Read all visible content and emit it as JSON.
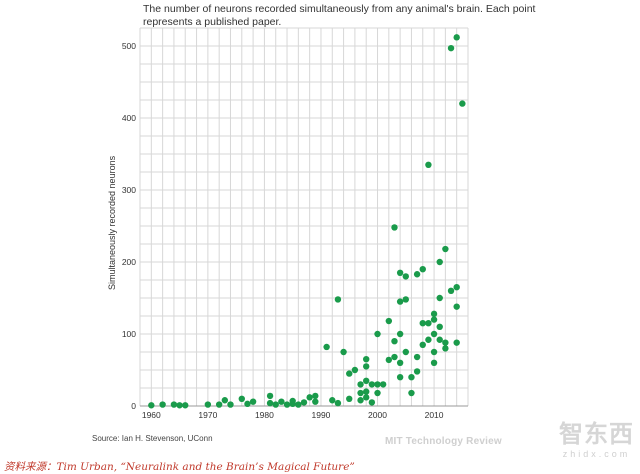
{
  "description": {
    "line1": "The number of neurons recorded simultaneously from any animal's brain. Each point",
    "line2": "represents a published paper."
  },
  "source": "Source: Ian H. Stevenson, UConn",
  "brand": "MIT Technology Review",
  "caption": "资料来源：Tim Urban, “Neuralink and the Brain’s Magical Future”",
  "watermark": {
    "main": "智东西",
    "sub": "zhidx.com"
  },
  "colors": {
    "points": "#1a9b4b",
    "grid": "#d7d7d7",
    "caption": "#c0392b"
  },
  "chart_data": {
    "type": "scatter",
    "title": "",
    "xlabel": "",
    "ylabel": "Simultaneously recorded neurons",
    "xlim": [
      1958,
      2016
    ],
    "ylim": [
      0,
      525
    ],
    "grid": true,
    "x_ticks": [
      1960,
      1970,
      1980,
      1990,
      2000,
      2010
    ],
    "y_ticks": [
      0,
      100,
      200,
      300,
      400,
      500
    ],
    "points": [
      [
        1960,
        1
      ],
      [
        1962,
        2
      ],
      [
        1964,
        2
      ],
      [
        1965,
        1
      ],
      [
        1966,
        1
      ],
      [
        1970,
        2
      ],
      [
        1972,
        2
      ],
      [
        1973,
        8
      ],
      [
        1974,
        2
      ],
      [
        1976,
        10
      ],
      [
        1977,
        3
      ],
      [
        1978,
        6
      ],
      [
        1981,
        14
      ],
      [
        1981,
        4
      ],
      [
        1982,
        2
      ],
      [
        1983,
        6
      ],
      [
        1984,
        2
      ],
      [
        1985,
        3
      ],
      [
        1985,
        7
      ],
      [
        1986,
        2
      ],
      [
        1987,
        5
      ],
      [
        1988,
        12
      ],
      [
        1989,
        6
      ],
      [
        1989,
        14
      ],
      [
        1991,
        82
      ],
      [
        1992,
        8
      ],
      [
        1993,
        148
      ],
      [
        1993,
        4
      ],
      [
        1994,
        75
      ],
      [
        1995,
        10
      ],
      [
        1995,
        45
      ],
      [
        1996,
        50
      ],
      [
        1997,
        8
      ],
      [
        1997,
        18
      ],
      [
        1997,
        30
      ],
      [
        1998,
        12
      ],
      [
        1998,
        20
      ],
      [
        1998,
        35
      ],
      [
        1998,
        55
      ],
      [
        1998,
        65
      ],
      [
        1999,
        5
      ],
      [
        1999,
        30
      ],
      [
        2000,
        18
      ],
      [
        2000,
        30
      ],
      [
        2000,
        100
      ],
      [
        2001,
        30
      ],
      [
        2002,
        64
      ],
      [
        2002,
        118
      ],
      [
        2003,
        248
      ],
      [
        2003,
        90
      ],
      [
        2003,
        68
      ],
      [
        2004,
        185
      ],
      [
        2004,
        145
      ],
      [
        2004,
        100
      ],
      [
        2004,
        60
      ],
      [
        2004,
        40
      ],
      [
        2005,
        180
      ],
      [
        2005,
        148
      ],
      [
        2005,
        75
      ],
      [
        2006,
        18
      ],
      [
        2006,
        40
      ],
      [
        2007,
        183
      ],
      [
        2007,
        68
      ],
      [
        2007,
        48
      ],
      [
        2008,
        190
      ],
      [
        2008,
        115
      ],
      [
        2008,
        85
      ],
      [
        2009,
        335
      ],
      [
        2009,
        115
      ],
      [
        2009,
        92
      ],
      [
        2010,
        128
      ],
      [
        2010,
        120
      ],
      [
        2010,
        100
      ],
      [
        2010,
        60
      ],
      [
        2010,
        75
      ],
      [
        2011,
        200
      ],
      [
        2011,
        150
      ],
      [
        2011,
        110
      ],
      [
        2011,
        92
      ],
      [
        2012,
        218
      ],
      [
        2012,
        88
      ],
      [
        2012,
        80
      ],
      [
        2013,
        497
      ],
      [
        2013,
        160
      ],
      [
        2014,
        512
      ],
      [
        2014,
        165
      ],
      [
        2014,
        138
      ],
      [
        2014,
        88
      ],
      [
        2015,
        420
      ]
    ]
  }
}
